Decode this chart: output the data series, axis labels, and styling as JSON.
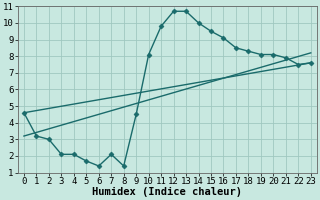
{
  "background_color": "#c8e8e0",
  "grid_color": "#a0c8c0",
  "line_color": "#1a6b6b",
  "marker_style": "D",
  "marker_size": 2.5,
  "line_width": 1.0,
  "xlim": [
    -0.5,
    23.5
  ],
  "ylim": [
    1,
    11
  ],
  "xlabel": "Humidex (Indice chaleur)",
  "xlabel_fontsize": 7.5,
  "xticks": [
    0,
    1,
    2,
    3,
    4,
    5,
    6,
    7,
    8,
    9,
    10,
    11,
    12,
    13,
    14,
    15,
    16,
    17,
    18,
    19,
    20,
    21,
    22,
    23
  ],
  "yticks": [
    1,
    2,
    3,
    4,
    5,
    6,
    7,
    8,
    9,
    10,
    11
  ],
  "tick_fontsize": 6.5,
  "curve1_x": [
    0,
    1,
    2,
    3,
    4,
    5,
    6,
    7,
    8,
    9,
    10,
    11,
    12,
    13,
    14,
    15,
    16,
    17,
    18,
    19,
    20,
    21,
    22,
    23
  ],
  "curve1_y": [
    4.6,
    3.2,
    3.0,
    2.1,
    2.1,
    1.7,
    1.4,
    2.1,
    1.4,
    4.5,
    8.1,
    9.8,
    10.7,
    10.7,
    10.0,
    9.5,
    9.1,
    8.5,
    8.3,
    8.1,
    8.1,
    7.9,
    7.5,
    7.6
  ],
  "curve2_x": [
    0,
    23
  ],
  "curve2_y": [
    4.6,
    7.6
  ],
  "curve3_x": [
    0,
    23
  ],
  "curve3_y": [
    3.2,
    8.2
  ]
}
